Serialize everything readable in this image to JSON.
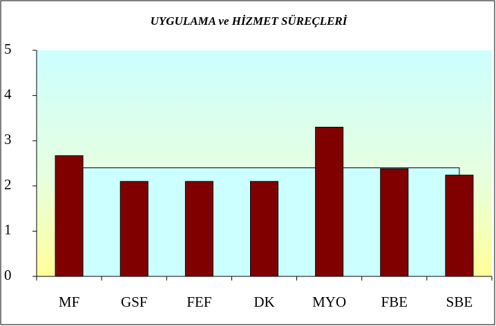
{
  "chart_data": {
    "type": "bar",
    "title": "UYGULAMA ve HİZMET SÜREÇLERİ",
    "categories": [
      "MF",
      "GSF",
      "FEF",
      "DK",
      "MYO",
      "FBE",
      "SBE"
    ],
    "series": [
      {
        "type": "bar",
        "color": "#800000",
        "values": [
          2.67,
          2.1,
          2.1,
          2.1,
          3.3,
          2.38,
          2.24
        ]
      },
      {
        "type": "area",
        "color": "#ccffff",
        "values": [
          2.4,
          2.4,
          2.4,
          2.4,
          2.4,
          2.4,
          2.4
        ]
      }
    ],
    "ylim": [
      0,
      5
    ],
    "yticks": [
      0,
      1,
      2,
      3,
      4,
      5
    ],
    "grid": false
  }
}
